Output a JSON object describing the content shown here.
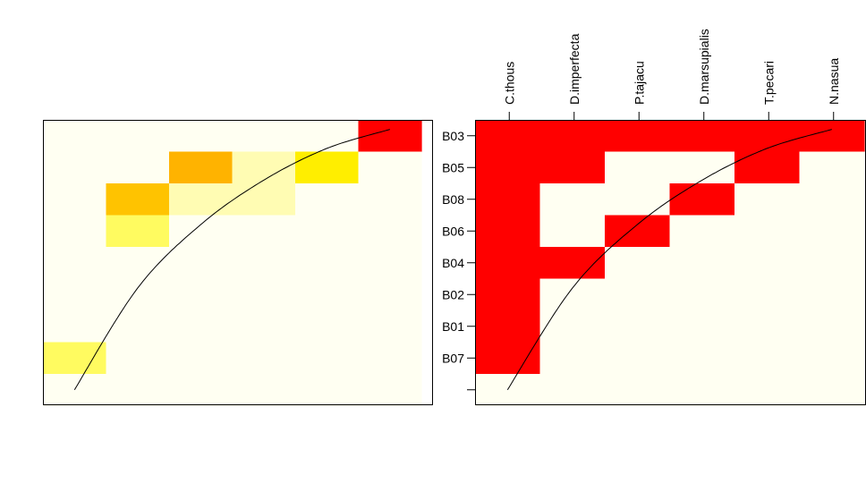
{
  "chart_data": [
    {
      "type": "heatmap",
      "title": "",
      "xlabel": "",
      "ylabel": "",
      "columns": 6,
      "rows": 9,
      "palette": {
        "0": "#fffff2",
        "1": "#fffcb3",
        "2": "#fffb60",
        "3": "#ffee00",
        "4": "#ffc300",
        "5": "#ffb300",
        "6": "#ff0000"
      },
      "cells": [
        [
          0,
          0,
          0,
          0,
          0,
          6
        ],
        [
          0,
          0,
          5,
          1,
          3,
          0
        ],
        [
          0,
          4,
          1,
          1,
          0,
          0
        ],
        [
          0,
          2,
          0,
          0,
          0,
          0
        ],
        [
          0,
          0,
          0,
          0,
          0,
          0
        ],
        [
          0,
          0,
          0,
          0,
          0,
          0
        ],
        [
          0,
          0,
          0,
          0,
          0,
          0
        ],
        [
          2,
          0,
          0,
          0,
          0,
          0
        ],
        [
          0,
          0,
          0,
          0,
          0,
          0
        ]
      ],
      "curve": [
        [
          0.5,
          -8.5
        ],
        [
          1.5,
          -5.3
        ],
        [
          2.5,
          -3.3
        ],
        [
          3.5,
          -1.9
        ],
        [
          4.5,
          -0.9
        ],
        [
          5.5,
          -0.3
        ]
      ]
    },
    {
      "type": "heatmap",
      "title": "",
      "xlabel": "",
      "ylabel": "",
      "x_labels": [
        "C.thous",
        "D.imperfecta",
        "P.tajacu",
        "D.marsupialis",
        "T.pecari",
        "N.nasua"
      ],
      "y_labels": [
        "B03",
        "B05",
        "B08",
        "B06",
        "B04",
        "B02",
        "B01",
        "B07",
        ""
      ],
      "palette": {
        "0": "#fffff2",
        "1": "#ff0000"
      },
      "cells": [
        [
          1,
          1,
          1,
          1,
          1,
          1
        ],
        [
          1,
          1,
          0,
          0,
          1,
          0
        ],
        [
          1,
          0,
          0,
          1,
          0,
          0
        ],
        [
          1,
          0,
          1,
          0,
          0,
          0
        ],
        [
          1,
          1,
          0,
          0,
          0,
          0
        ],
        [
          1,
          0,
          0,
          0,
          0,
          0
        ],
        [
          1,
          0,
          0,
          0,
          0,
          0
        ],
        [
          1,
          0,
          0,
          0,
          0,
          0
        ],
        [
          0,
          0,
          0,
          0,
          0,
          0
        ]
      ],
      "curve": [
        [
          0.5,
          -8.5
        ],
        [
          1.5,
          -5.3
        ],
        [
          2.5,
          -3.3
        ],
        [
          3.5,
          -1.9
        ],
        [
          4.5,
          -0.9
        ],
        [
          5.5,
          -0.3
        ]
      ]
    }
  ]
}
